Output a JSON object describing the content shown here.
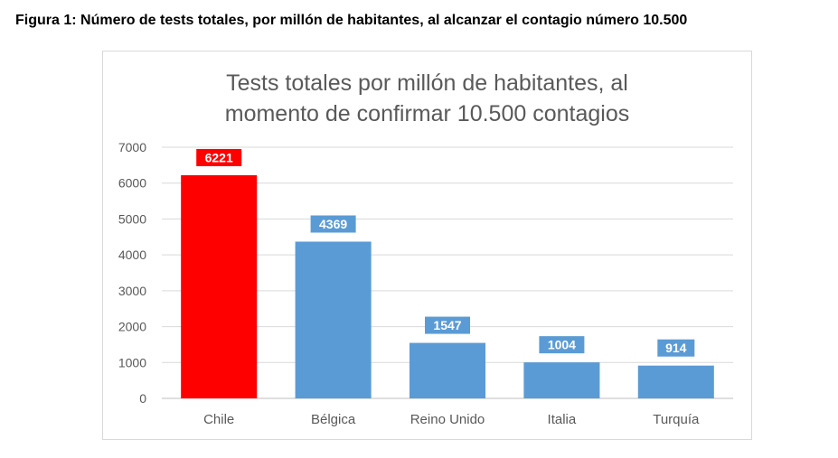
{
  "figure_caption": "Figura 1: Número de tests totales, por millón de habitantes, al alcanzar el contagio número 10.500",
  "chart_data": {
    "type": "bar",
    "title_lines": [
      "Tests totales por millón de habitantes, al",
      "momento de confirmar 10.500 contagios"
    ],
    "categories": [
      "Chile",
      "Bélgica",
      "Reino Unido",
      "Italia",
      "Turquía"
    ],
    "values": [
      6221,
      4369,
      1547,
      1004,
      914
    ],
    "bar_colors": [
      "#ff0000",
      "#5b9bd5",
      "#5b9bd5",
      "#5b9bd5",
      "#5b9bd5"
    ],
    "ylim": [
      0,
      7000
    ],
    "yticks": [
      0,
      1000,
      2000,
      3000,
      4000,
      5000,
      6000,
      7000
    ],
    "grid": true,
    "data_labels": true,
    "legend": "none"
  }
}
